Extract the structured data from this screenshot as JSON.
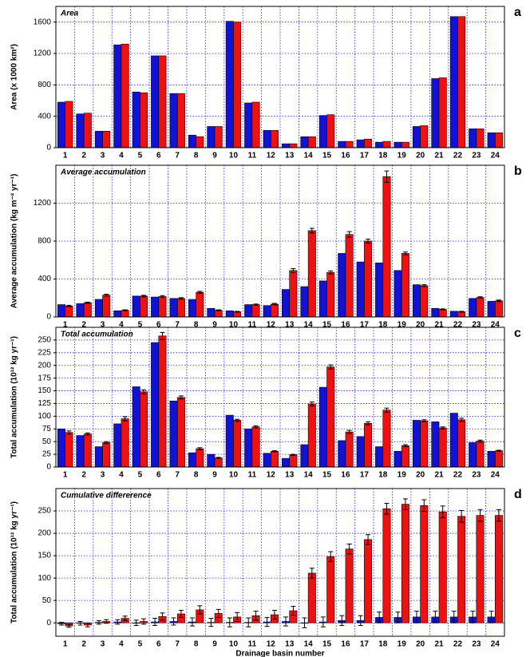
{
  "chart_data": [
    {
      "type": "bar",
      "label": "a",
      "title": "Area",
      "y_label": "Area (x 1000 km²)",
      "categories": [
        "1",
        "2",
        "3",
        "4",
        "5",
        "6",
        "7",
        "8",
        "9",
        "10",
        "11",
        "12",
        "13",
        "14",
        "15",
        "16",
        "17",
        "18",
        "19",
        "20",
        "21",
        "22",
        "23",
        "24"
      ],
      "series": [
        {
          "color": "#1212d4",
          "values": [
            580,
            430,
            210,
            1310,
            710,
            1170,
            690,
            160,
            270,
            1610,
            570,
            220,
            50,
            140,
            410,
            80,
            100,
            70,
            70,
            270,
            880,
            1670,
            240,
            190
          ]
        },
        {
          "color": "#ee1111",
          "values": [
            590,
            440,
            210,
            1320,
            700,
            1170,
            690,
            140,
            270,
            1600,
            580,
            220,
            50,
            140,
            420,
            80,
            110,
            80,
            70,
            280,
            890,
            1670,
            240,
            190
          ]
        }
      ],
      "ylim": [
        0,
        1800
      ],
      "yticks": [
        0,
        400,
        800,
        1200,
        1600
      ],
      "grid": true
    },
    {
      "type": "bar",
      "label": "b",
      "title": "Average accumulation",
      "y_label": "Average accumulation (kg m⁻² yr⁻¹)",
      "categories": [
        "1",
        "2",
        "3",
        "4",
        "5",
        "6",
        "7",
        "8",
        "9",
        "10",
        "11",
        "12",
        "13",
        "14",
        "15",
        "16",
        "17",
        "18",
        "19",
        "20",
        "21",
        "22",
        "23",
        "24"
      ],
      "series": [
        {
          "color": "#1212d4",
          "values": [
            130,
            140,
            185,
            65,
            220,
            210,
            195,
            185,
            90,
            65,
            130,
            120,
            290,
            320,
            380,
            670,
            580,
            570,
            490,
            340,
            90,
            60,
            195,
            165
          ]
        },
        {
          "color": "#ee1111",
          "values": [
            115,
            150,
            230,
            70,
            220,
            215,
            195,
            260,
            70,
            55,
            130,
            135,
            490,
            910,
            470,
            870,
            800,
            1480,
            670,
            330,
            80,
            55,
            205,
            170
          ],
          "errors": [
            8,
            6,
            10,
            5,
            8,
            10,
            8,
            10,
            5,
            4,
            6,
            8,
            20,
            25,
            15,
            30,
            20,
            60,
            15,
            10,
            5,
            4,
            8,
            8
          ]
        }
      ],
      "ylim": [
        0,
        1600
      ],
      "yticks": [
        0,
        400,
        800,
        1200
      ],
      "grid": true
    },
    {
      "type": "bar",
      "label": "c",
      "title": "Total accumulation",
      "y_label": "Total accumulation (10¹² kg yr⁻¹)",
      "categories": [
        "1",
        "2",
        "3",
        "4",
        "5",
        "6",
        "7",
        "8",
        "9",
        "10",
        "11",
        "12",
        "13",
        "14",
        "15",
        "16",
        "17",
        "18",
        "19",
        "20",
        "21",
        "22",
        "23",
        "24"
      ],
      "series": [
        {
          "color": "#1212d4",
          "values": [
            75,
            62,
            40,
            85,
            158,
            245,
            130,
            28,
            25,
            102,
            75,
            27,
            17,
            44,
            157,
            52,
            60,
            40,
            31,
            92,
            89,
            106,
            48,
            31
          ]
        },
        {
          "color": "#ee1111",
          "values": [
            68,
            65,
            48,
            95,
            148,
            258,
            137,
            36,
            18,
            92,
            79,
            31,
            24,
            124,
            197,
            69,
            86,
            112,
            42,
            91,
            77,
            93,
            51,
            32
          ],
          "errors": [
            3,
            2,
            2,
            4,
            4,
            7,
            3,
            2,
            1,
            2,
            2,
            1,
            1,
            4,
            4,
            3,
            3,
            4,
            2,
            2,
            2,
            3,
            2,
            1
          ]
        }
      ],
      "ylim": [
        0,
        275
      ],
      "yticks": [
        0,
        25,
        50,
        75,
        100,
        125,
        150,
        175,
        200,
        225,
        250
      ],
      "grid": true
    },
    {
      "type": "bar",
      "label": "d",
      "title": "Cumulative differerence",
      "y_label": "Total accumulation (10¹² kg yr⁻¹)",
      "x_label": "Drainage basin number",
      "categories": [
        "1",
        "2",
        "3",
        "4",
        "5",
        "6",
        "7",
        "8",
        "9",
        "10",
        "11",
        "12",
        "13",
        "14",
        "15",
        "16",
        "17",
        "18",
        "19",
        "20",
        "21",
        "22",
        "23",
        "24"
      ],
      "series": [
        {
          "color": "#1212d4",
          "values": [
            -2,
            -1,
            1,
            2,
            0,
            2,
            3,
            2,
            1,
            1,
            1,
            2,
            3,
            0,
            2,
            5,
            5,
            12,
            12,
            13,
            13,
            13,
            13,
            13
          ],
          "errors": [
            3,
            4,
            4,
            5,
            6,
            8,
            8,
            9,
            9,
            10,
            10,
            10,
            10,
            11,
            11,
            11,
            11,
            12,
            12,
            13,
            13,
            13,
            13,
            13
          ]
        },
        {
          "color": "#ee1111",
          "values": [
            -7,
            -5,
            3,
            10,
            3,
            14,
            20,
            29,
            21,
            13,
            16,
            18,
            27,
            111,
            148,
            165,
            186,
            255,
            265,
            262,
            248,
            238,
            240,
            240
          ],
          "errors": [
            3,
            4,
            4,
            5,
            6,
            8,
            8,
            9,
            9,
            10,
            10,
            10,
            10,
            11,
            11,
            11,
            11,
            12,
            12,
            13,
            13,
            13,
            13,
            13
          ]
        }
      ],
      "ylim": [
        -30,
        300
      ],
      "yticks": [
        0,
        50,
        100,
        150,
        200,
        250
      ],
      "grid": true
    }
  ]
}
